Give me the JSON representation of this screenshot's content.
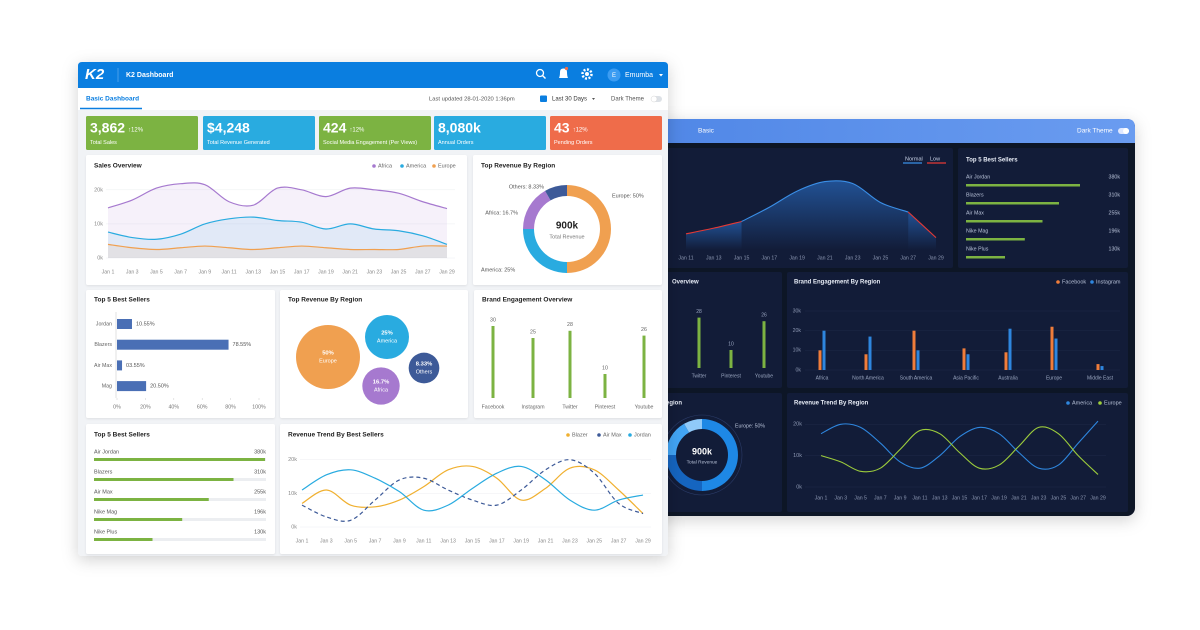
{
  "light": {
    "header": {
      "logo": "K2",
      "title": "K2 Dashboard",
      "avatar": "E",
      "user": "Emumba"
    },
    "toolbar": {
      "tab": "Basic Dashboard",
      "updated": "Last updated 28-01-2020 1:36pm",
      "range": "Last 30 Days",
      "theme": "Dark Theme"
    },
    "kpis": [
      {
        "value": "3,862",
        "change": "↑12%",
        "label": "Total Sales",
        "color": "#7cb342"
      },
      {
        "value": "$4,248",
        "label": "Total Revenue Generated",
        "color": "#29abe0"
      },
      {
        "value": "424",
        "change": "↑12%",
        "label": "Social Media Engagement (Per Views)",
        "color": "#7cb342"
      },
      {
        "value": "8,080k",
        "label": "Annual Orders",
        "color": "#29abe0"
      },
      {
        "value": "43",
        "change": "↑12%",
        "label": "Pending Orders",
        "color": "#ef6c4a"
      }
    ],
    "sales_overview": {
      "type": "area",
      "title": "Sales Overview",
      "categories": [
        "Jan 1",
        "Jan 3",
        "Jan 5",
        "Jan 7",
        "Jan 9",
        "Jan 11",
        "Jan 13",
        "Jan 15",
        "Jan 17",
        "Jan 19",
        "Jan 21",
        "Jan 23",
        "Jan 25",
        "Jan 27",
        "Jan 29"
      ],
      "ylim": [
        0,
        22
      ],
      "yticks": [
        {
          "value": 0,
          "label": "0k"
        },
        {
          "value": 10,
          "label": "10k"
        },
        {
          "value": 20,
          "label": "20k"
        }
      ],
      "series": [
        {
          "name": "Africa",
          "color": "#a679cf",
          "values": [
            14.7,
            17,
            20.5,
            21.8,
            21.5,
            16.5,
            15.5,
            20.5,
            20,
            18,
            20.5,
            20,
            19,
            16.5,
            14.5
          ]
        },
        {
          "name": "America",
          "color": "#29abe0",
          "values": [
            7.6,
            6,
            5.5,
            7,
            10,
            11.5,
            12,
            11,
            10.5,
            8.5,
            10,
            8.5,
            8,
            6.5,
            4
          ]
        },
        {
          "name": "Europe",
          "color": "#f0a050",
          "values": [
            4,
            3,
            2.5,
            3,
            3.5,
            3,
            2.5,
            3,
            3.5,
            3,
            2.5,
            2.5,
            2.5,
            3.5,
            3.5
          ]
        }
      ]
    },
    "region_donut": {
      "type": "donut",
      "title": "Top Revenue By Region",
      "values": [
        50,
        25,
        16.7,
        8.33
      ],
      "value_labels": [
        "Europe: 50%",
        "America: 25%",
        "Africa: 16.7%",
        "Others: 8.33%"
      ],
      "colors": [
        "#f0a050",
        "#29abe0",
        "#a679cf",
        "#3d5a98"
      ],
      "center_value": "900k",
      "center_label": "Total Revenue"
    },
    "best_sellers_bar": {
      "type": "hbar",
      "title": "Top 5 Best Sellers",
      "categories": [
        "Jordan",
        "Blazers",
        "Air Max",
        "Mag"
      ],
      "values": [
        10.55,
        78.55,
        3.55,
        20.5
      ],
      "value_labels": [
        "10.55%",
        "78.55%",
        "03.55%",
        "20.50%"
      ],
      "color": "#4a6fb5",
      "xlim": [
        0,
        100
      ],
      "xticks": [
        {
          "value": 0,
          "label": "0%"
        },
        {
          "value": 20,
          "label": "20%"
        },
        {
          "value": 40,
          "label": "40%"
        },
        {
          "value": 60,
          "label": "60%"
        },
        {
          "value": 80,
          "label": "80%"
        },
        {
          "value": 100,
          "label": "100%"
        }
      ]
    },
    "region_bubbles": {
      "type": "bubble",
      "title": "Top Revenue By Region",
      "categories": [
        "Europe",
        "America",
        "Africa",
        "Others"
      ],
      "values": [
        50,
        25,
        16.7,
        8.33
      ],
      "value_labels": [
        "50%",
        "25%",
        "16.7%",
        "8.33%"
      ],
      "colors": [
        "#f0a050",
        "#29abe0",
        "#a679cf",
        "#3d5a98"
      ]
    },
    "brand_engagement": {
      "type": "bar",
      "title": "Brand Engagement Overview",
      "categories": [
        "Facebook",
        "Instagram",
        "Twitter",
        "Pinterest",
        "Youtube"
      ],
      "values": [
        30,
        25,
        28,
        10,
        26
      ],
      "color": "#7cb342"
    },
    "best_sellers_progress": {
      "type": "progress",
      "title": "Top 5 Best Sellers",
      "categories": [
        "Air Jordan",
        "Blazers",
        "Air Max",
        "Nike Mag",
        "Nike Plus"
      ],
      "values": [
        380,
        310,
        255,
        196,
        130
      ],
      "value_labels": [
        "380k",
        "310k",
        "255k",
        "196k",
        "130k"
      ],
      "color": "#7cb342"
    },
    "revenue_trend": {
      "type": "line",
      "title": "Revenue Trend By Best Sellers",
      "categories": [
        "Jan 1",
        "Jan 3",
        "Jan 5",
        "Jan 7",
        "Jan 9",
        "Jan 11",
        "Jan 13",
        "Jan 15",
        "Jan 17",
        "Jan 19",
        "Jan 21",
        "Jan 23",
        "Jan 25",
        "Jan 27",
        "Jan 29"
      ],
      "ylim": [
        0,
        22
      ],
      "yticks": [
        {
          "value": 0,
          "label": "0k"
        },
        {
          "value": 10,
          "label": "10k"
        },
        {
          "value": 20,
          "label": "20k"
        }
      ],
      "series": [
        {
          "name": "Blazer",
          "color": "#f0b030",
          "values": [
            7,
            11,
            6.5,
            6,
            8,
            12,
            17,
            18,
            14.5,
            8,
            11.5,
            17.5,
            17,
            11,
            4
          ]
        },
        {
          "name": "Air Max",
          "color": "#3d5a98",
          "dashed": true,
          "values": [
            6.5,
            3,
            2,
            8,
            14,
            14.5,
            11,
            8,
            6.5,
            11,
            17,
            20,
            16,
            7,
            4
          ]
        },
        {
          "name": "Jordan",
          "color": "#29abe0",
          "values": [
            11,
            15.5,
            17,
            14.5,
            10.5,
            5,
            6.5,
            11.5,
            16,
            18,
            14,
            8,
            5,
            8,
            9.5
          ]
        }
      ]
    }
  },
  "dark": {
    "toolbar": {
      "tab": "Basic",
      "theme": "Dark Theme"
    },
    "area": {
      "type": "area",
      "categories": [
        "Jan 11",
        "Jan 13",
        "Jan 15",
        "Jan 17",
        "Jan 19",
        "Jan 21",
        "Jan 23",
        "Jan 25",
        "Jan 27",
        "Jan 29"
      ],
      "series": [
        {
          "name": "Normal",
          "color": "#3a8ee6",
          "values": [
            null,
            null,
            30,
            45,
            62,
            72,
            70,
            50,
            40,
            null
          ]
        },
        {
          "name": "Low",
          "color": "#e53935",
          "values": [
            17,
            23,
            30,
            null,
            null,
            null,
            null,
            null,
            40,
            13
          ]
        }
      ]
    },
    "best_sellers": {
      "type": "progress",
      "title": "Top 5 Best Sellers",
      "categories": [
        "Air Jordan",
        "Blazers",
        "Air Max",
        "Nike Mag",
        "Nike Plus"
      ],
      "values": [
        380,
        310,
        255,
        196,
        130
      ],
      "value_labels": [
        "380k",
        "310k",
        "255k",
        "196k",
        "130k"
      ],
      "color": "#7cb342"
    },
    "overview": {
      "type": "bar",
      "title": "Overview",
      "categories": [
        "Twitter",
        "Pinterest",
        "Youtube"
      ],
      "values": [
        28,
        10,
        26
      ],
      "color": "#7cb342"
    },
    "brand_by_region": {
      "type": "grouped_bar",
      "title": "Brand Engagement By Region",
      "categories": [
        "Africa",
        "North America",
        "South America",
        "Asia Pacific",
        "Australia",
        "Europe",
        "Middle East"
      ],
      "ylim": [
        0,
        30
      ],
      "yticks": [
        {
          "value": 0,
          "label": "0k"
        },
        {
          "value": 10,
          "label": "10k"
        },
        {
          "value": 20,
          "label": "20k"
        },
        {
          "value": 30,
          "label": "30k"
        }
      ],
      "series": [
        {
          "name": "Facebook",
          "color": "#f07d3a",
          "values": [
            10,
            8,
            20,
            11,
            9,
            22,
            3
          ]
        },
        {
          "name": "Instagram",
          "color": "#2e86de",
          "values": [
            20,
            17,
            10,
            8,
            21,
            16,
            2
          ]
        }
      ]
    },
    "region_donut": {
      "type": "donut",
      "title": "egion",
      "values": [
        50,
        25,
        16.7,
        8.33
      ],
      "value_labels": [
        "Europe: 50%"
      ],
      "colors": [
        "#1e88e5",
        "#1565c0",
        "#42a5f5",
        "#90caf9"
      ],
      "center_value": "900k",
      "center_label": "Total Revenue"
    },
    "revenue_by_region": {
      "type": "line",
      "title": "Revenue Trend By Region",
      "categories": [
        "Jan 1",
        "Jan 3",
        "Jan 5",
        "Jan 7",
        "Jan 9",
        "Jan 11",
        "Jan 13",
        "Jan 15",
        "Jan 17",
        "Jan 19",
        "Jan 21",
        "Jan 23",
        "Jan 25",
        "Jan 27",
        "Jan 29"
      ],
      "ylim": [
        0,
        22
      ],
      "yticks": [
        {
          "value": 0,
          "label": "0k"
        },
        {
          "value": 10,
          "label": "10k"
        },
        {
          "value": 20,
          "label": "20k"
        }
      ],
      "series": [
        {
          "name": "America",
          "color": "#2e86de",
          "values": [
            17,
            20,
            19,
            14,
            8,
            6,
            10,
            16,
            19,
            17,
            11,
            6,
            7,
            14,
            21
          ]
        },
        {
          "name": "Europe",
          "color": "#9ccc3c",
          "values": [
            10,
            8,
            5,
            6,
            12,
            18,
            17,
            11,
            6,
            7,
            13,
            19,
            17,
            10,
            4
          ]
        }
      ]
    }
  }
}
